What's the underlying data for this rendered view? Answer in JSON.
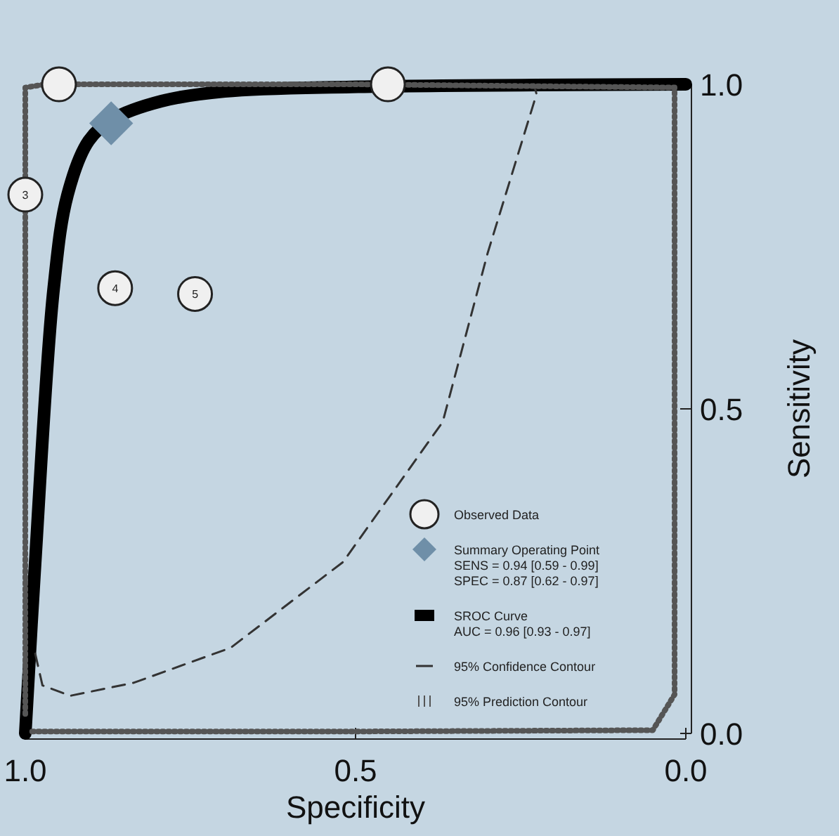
{
  "chart_data": {
    "type": "line",
    "xlabel": "Specificity",
    "ylabel": "Sensitivity",
    "xlim": [
      1,
      0
    ],
    "ylim": [
      0,
      1
    ],
    "xticks": [
      {
        "value": 1,
        "label": "1.0"
      },
      {
        "value": 0.5,
        "label": "0.5"
      },
      {
        "value": 0,
        "label": "0.0"
      }
    ],
    "yticks": [
      {
        "value": 0,
        "label": "0.0"
      },
      {
        "value": 0.5,
        "label": "0.5"
      },
      {
        "value": 1,
        "label": "1.0"
      }
    ],
    "grid": false,
    "legend": "bottom right",
    "annotations": [
      {
        "text": "3",
        "x": 1.0,
        "y": 0.83
      },
      {
        "text": "4",
        "x": 0.864,
        "y": 0.686
      },
      {
        "text": "5",
        "x": 0.743,
        "y": 0.677
      }
    ],
    "series": [
      {
        "name": "Observed Data",
        "type": "scatter",
        "marker": "circle",
        "color": "#f0f0f0",
        "x": [
          0.949,
          0.451,
          1.0,
          0.864,
          0.743
        ],
        "values": [
          1.0,
          1.0,
          0.83,
          0.686,
          0.677
        ]
      },
      {
        "name": "Summary Operating Point\nSENS = 0.94 [0.59 - 0.99]\nSPEC = 0.87 [0.62 - 0.97]",
        "type": "scatter",
        "marker": "diamond",
        "color": "#6f8fa8",
        "x": [
          0.87
        ],
        "values": [
          0.94
        ]
      },
      {
        "name": "SROC Curve\nAUC = 0.96 [0.93 - 0.97]",
        "color": "#000000",
        "line_style": "solid",
        "x": [
          1.0,
          0.985,
          0.957,
          0.936,
          0.904,
          0.868,
          0.794,
          0.698,
          0.506,
          0.0
        ],
        "values": [
          0.0,
          0.264,
          0.686,
          0.83,
          0.913,
          0.946,
          0.974,
          0.989,
          0.996,
          1.0
        ]
      },
      {
        "name": "95% Confidence Contour",
        "color": "#333333",
        "line_style": "dashed",
        "x": [
          0.985,
          0.974,
          0.932,
          0.836,
          0.689,
          0.519,
          0.368,
          0.3,
          0.226,
          0.23
        ],
        "values": [
          0.123,
          0.074,
          0.058,
          0.078,
          0.132,
          0.264,
          0.48,
          0.74,
          0.985,
          1.0
        ]
      },
      {
        "name": "95% Prediction Contour",
        "color": "#555555",
        "line_style": "dotted",
        "x": [
          1.0,
          1.0,
          0.97,
          0.5,
          0.017,
          0.017,
          0.05,
          0.5,
          0.99
        ],
        "values": [
          0.03,
          0.995,
          1.0,
          1.0,
          0.995,
          0.06,
          0.005,
          0.003,
          0.003
        ]
      }
    ]
  }
}
